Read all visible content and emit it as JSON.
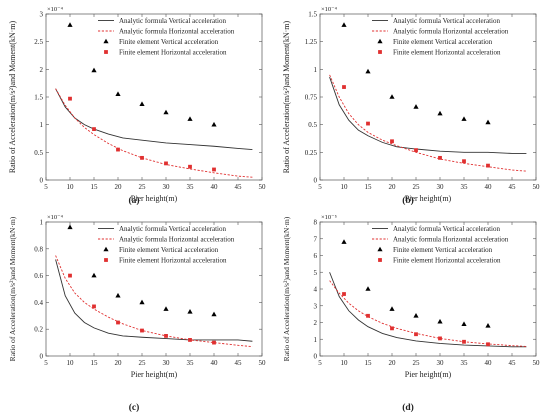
{
  "chart_data": [
    {
      "type": "line",
      "panel_label": "(a)",
      "xlabel": "Pier height(m)",
      "ylabel": "Ratio of Acceleration(m/s²)and Moment(kN·m)",
      "y_multiplier": "×10⁻⁴",
      "xlim": [
        5,
        50
      ],
      "xticks": [
        5,
        10,
        15,
        20,
        25,
        30,
        35,
        40,
        45,
        50
      ],
      "ylim": [
        0,
        3
      ],
      "yticks": [
        0,
        0.5,
        1,
        1.5,
        2,
        2.5,
        3
      ],
      "ytick_labels": [
        "0",
        "0.5",
        "1",
        "1.5",
        "2",
        "2.5",
        "3"
      ],
      "grid": false,
      "legend_position": "top-right",
      "series": [
        {
          "name": "Analytic formula Vertical acceleration",
          "kind": "line",
          "style": "solid",
          "color": "#333333",
          "x": [
            7,
            9,
            11,
            13,
            15,
            18,
            21,
            25,
            30,
            35,
            40,
            45,
            48
          ],
          "y": [
            1.65,
            1.32,
            1.12,
            1.0,
            0.92,
            0.83,
            0.76,
            0.72,
            0.67,
            0.64,
            0.61,
            0.57,
            0.55
          ]
        },
        {
          "name": "Analytic formula Horizontal acceleration",
          "kind": "line",
          "style": "dashed",
          "color": "#e03030",
          "x": [
            7,
            9,
            11,
            13,
            15,
            18,
            21,
            25,
            30,
            35,
            40,
            45,
            48
          ],
          "y": [
            1.65,
            1.35,
            1.12,
            0.95,
            0.82,
            0.66,
            0.53,
            0.4,
            0.28,
            0.2,
            0.13,
            0.07,
            0.05
          ]
        },
        {
          "name": "Finite element Vertical acceleration",
          "kind": "marker",
          "marker": "triangle",
          "color": "#000000",
          "x": [
            10,
            15,
            20,
            25,
            30,
            35,
            40
          ],
          "y": [
            2.8,
            1.98,
            1.55,
            1.37,
            1.22,
            1.1,
            1.0
          ]
        },
        {
          "name": "Finite element Horizontal acceleration",
          "kind": "marker",
          "marker": "square",
          "color": "#e03030",
          "x": [
            10,
            15,
            20,
            25,
            30,
            35,
            40
          ],
          "y": [
            1.47,
            0.92,
            0.55,
            0.4,
            0.3,
            0.24,
            0.19
          ]
        }
      ]
    },
    {
      "type": "line",
      "panel_label": "(b)",
      "xlabel": "Pier height(m)",
      "ylabel": "Ratio of Acceleration(m/s²)and Moment(kN·m)",
      "y_multiplier": "×10⁻⁴",
      "xlim": [
        5,
        50
      ],
      "xticks": [
        5,
        10,
        15,
        20,
        25,
        30,
        35,
        40,
        45,
        50
      ],
      "ylim": [
        0,
        1.5
      ],
      "yticks": [
        0,
        0.25,
        0.5,
        0.75,
        1,
        1.25,
        1.5
      ],
      "ytick_labels": [
        "0",
        "0.25",
        "0.5",
        "0.75",
        "1",
        "1.25",
        "1.5"
      ],
      "grid": false,
      "legend_position": "top-right",
      "series": [
        {
          "name": "Analytic formula Vertical acceleration",
          "kind": "line",
          "style": "solid",
          "color": "#333333",
          "x": [
            7,
            9,
            11,
            13,
            15,
            18,
            21,
            25,
            30,
            35,
            40,
            45,
            48
          ],
          "y": [
            0.93,
            0.68,
            0.54,
            0.45,
            0.4,
            0.34,
            0.3,
            0.28,
            0.26,
            0.25,
            0.25,
            0.24,
            0.24
          ]
        },
        {
          "name": "Analytic formula Horizontal acceleration",
          "kind": "line",
          "style": "dashed",
          "color": "#e03030",
          "x": [
            7,
            9,
            11,
            13,
            15,
            18,
            21,
            25,
            30,
            35,
            40,
            45,
            48
          ],
          "y": [
            0.95,
            0.75,
            0.6,
            0.5,
            0.43,
            0.36,
            0.31,
            0.25,
            0.19,
            0.15,
            0.12,
            0.09,
            0.08
          ]
        },
        {
          "name": "Finite element Vertical acceleration",
          "kind": "marker",
          "marker": "triangle",
          "color": "#000000",
          "x": [
            10,
            15,
            20,
            25,
            30,
            35,
            40
          ],
          "y": [
            1.4,
            0.98,
            0.75,
            0.66,
            0.6,
            0.55,
            0.52
          ]
        },
        {
          "name": "Finite element Horizontal acceleration",
          "kind": "marker",
          "marker": "square",
          "color": "#e03030",
          "x": [
            10,
            15,
            20,
            25,
            30,
            35,
            40
          ],
          "y": [
            0.84,
            0.51,
            0.35,
            0.27,
            0.2,
            0.17,
            0.13
          ]
        }
      ]
    },
    {
      "type": "line",
      "panel_label": "(c)",
      "xlabel": "Pier height(m)",
      "ylabel": "Ratio of Acceleration(m/s²)and Moment(kN·m)",
      "y_multiplier": "×10⁻⁴",
      "xlim": [
        5,
        50
      ],
      "xticks": [
        5,
        10,
        15,
        20,
        25,
        30,
        35,
        40,
        45,
        50
      ],
      "ylim": [
        0,
        1
      ],
      "yticks": [
        0,
        0.2,
        0.4,
        0.6,
        0.8,
        1
      ],
      "ytick_labels": [
        "0",
        "0.2",
        "0.4",
        "0.6",
        "0.8",
        "1"
      ],
      "grid": false,
      "legend_position": "top-right",
      "series": [
        {
          "name": "Analytic formula Vertical acceleration",
          "kind": "line",
          "style": "solid",
          "color": "#333333",
          "x": [
            7,
            9,
            11,
            13,
            15,
            18,
            21,
            25,
            30,
            35,
            40,
            45,
            48
          ],
          "y": [
            0.72,
            0.45,
            0.32,
            0.25,
            0.21,
            0.17,
            0.15,
            0.14,
            0.13,
            0.12,
            0.12,
            0.12,
            0.11
          ]
        },
        {
          "name": "Analytic formula Horizontal acceleration",
          "kind": "line",
          "style": "dashed",
          "color": "#e03030",
          "x": [
            7,
            9,
            11,
            13,
            15,
            18,
            21,
            25,
            30,
            35,
            40,
            45,
            48
          ],
          "y": [
            0.75,
            0.58,
            0.47,
            0.4,
            0.35,
            0.29,
            0.24,
            0.19,
            0.15,
            0.12,
            0.1,
            0.08,
            0.07
          ]
        },
        {
          "name": "Finite element Vertical acceleration",
          "kind": "marker",
          "marker": "triangle",
          "color": "#000000",
          "x": [
            10,
            15,
            20,
            25,
            30,
            35,
            40
          ],
          "y": [
            0.96,
            0.6,
            0.45,
            0.4,
            0.35,
            0.33,
            0.31
          ]
        },
        {
          "name": "Finite element Horizontal acceleration",
          "kind": "marker",
          "marker": "square",
          "color": "#e03030",
          "x": [
            10,
            15,
            20,
            25,
            30,
            35,
            40
          ],
          "y": [
            0.6,
            0.37,
            0.25,
            0.19,
            0.15,
            0.12,
            0.1
          ]
        }
      ]
    },
    {
      "type": "line",
      "panel_label": "(d)",
      "xlabel": "Pier height(m)",
      "ylabel": "Ratio of Acceleration(m/s²)and Moment(kN·m)",
      "y_multiplier": "×10⁻⁵",
      "xlim": [
        5,
        50
      ],
      "xticks": [
        5,
        10,
        15,
        20,
        25,
        30,
        35,
        40,
        45,
        50
      ],
      "ylim": [
        0,
        8
      ],
      "yticks": [
        0,
        1,
        2,
        3,
        4,
        5,
        6,
        7,
        8
      ],
      "ytick_labels": [
        "0",
        "1",
        "2",
        "3",
        "4",
        "5",
        "6",
        "7",
        "8"
      ],
      "grid": false,
      "legend_position": "top-right",
      "series": [
        {
          "name": "Analytic formula Vertical acceleration",
          "kind": "line",
          "style": "solid",
          "color": "#333333",
          "x": [
            7,
            9,
            11,
            13,
            15,
            18,
            21,
            25,
            30,
            35,
            40,
            45,
            48
          ],
          "y": [
            5.0,
            3.55,
            2.7,
            2.15,
            1.75,
            1.35,
            1.1,
            0.9,
            0.75,
            0.65,
            0.6,
            0.55,
            0.55
          ]
        },
        {
          "name": "Analytic formula Horizontal acceleration",
          "kind": "line",
          "style": "dashed",
          "color": "#e03030",
          "x": [
            7,
            9,
            11,
            13,
            15,
            18,
            21,
            25,
            30,
            35,
            40,
            45,
            48
          ],
          "y": [
            4.5,
            3.75,
            3.15,
            2.7,
            2.35,
            1.95,
            1.65,
            1.35,
            1.05,
            0.85,
            0.72,
            0.62,
            0.57
          ]
        },
        {
          "name": "Finite element Vertical acceleration",
          "kind": "marker",
          "marker": "triangle",
          "color": "#000000",
          "x": [
            10,
            15,
            20,
            25,
            30,
            35,
            40
          ],
          "y": [
            6.8,
            4.0,
            2.8,
            2.4,
            2.05,
            1.9,
            1.8
          ]
        },
        {
          "name": "Finite element Horizontal acceleration",
          "kind": "marker",
          "marker": "square",
          "color": "#e03030",
          "x": [
            10,
            15,
            20,
            25,
            30,
            35,
            40
          ],
          "y": [
            3.7,
            2.4,
            1.65,
            1.3,
            1.05,
            0.85,
            0.7
          ]
        }
      ]
    }
  ]
}
